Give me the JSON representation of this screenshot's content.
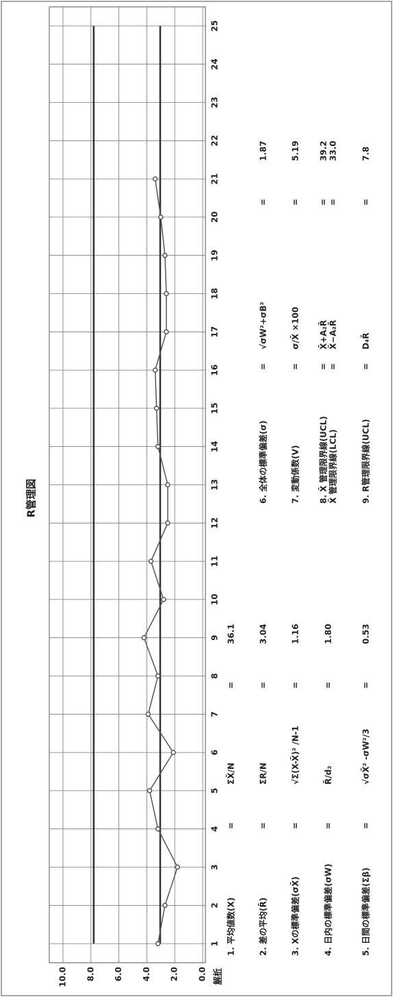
{
  "chart_data": {
    "type": "line",
    "title": "R管理図",
    "x": [
      1,
      2,
      3,
      4,
      5,
      6,
      7,
      8,
      9,
      10,
      11,
      12,
      13,
      14,
      15,
      16,
      17,
      18,
      19,
      20,
      21,
      22,
      23,
      24,
      25
    ],
    "values": [
      3.2,
      2.7,
      1.8,
      3.2,
      3.8,
      2.1,
      3.9,
      3.2,
      4.2,
      2.8,
      3.7,
      2.5,
      2.5,
      3.2,
      3.3,
      3.4,
      2.6,
      2.6,
      2.7,
      3.0,
      3.4,
      null,
      null,
      null,
      null
    ],
    "color": "#555555",
    "xlim": [
      0.5,
      25.5
    ],
    "xticks": [
      1,
      2,
      3,
      4,
      5,
      6,
      7,
      8,
      9,
      10,
      11,
      12,
      13,
      14,
      15,
      16,
      17,
      18,
      19,
      20,
      21,
      22,
      23,
      24,
      25
    ],
    "ylim": [
      0,
      10
    ],
    "yticks": [
      {
        "value": 0,
        "label": "0.0"
      },
      {
        "value": 2,
        "label": "2.0"
      },
      {
        "value": 4,
        "label": "4.0"
      },
      {
        "value": 6,
        "label": "6.0"
      },
      {
        "value": 8,
        "label": "8.0"
      },
      {
        "value": 10,
        "label": "10.0"
      }
    ],
    "grid": true
  },
  "analysis": {
    "title": "解析",
    "equals": "=",
    "items": [
      {
        "label": "1. 平均値数(X)",
        "formula": "ΣX̄/N",
        "result": "36.1"
      },
      {
        "label": "2. 差の平均(R̄)",
        "formula": "ΣR/N",
        "result": "3.04"
      },
      {
        "label": "3. Xの標準偏差(σX̄)",
        "formula": "√Σ(X-X̄)² /N-1",
        "result": "1.16"
      },
      {
        "label": "4. 日内の標準偏差(σW)",
        "formula": "R̄/d₂",
        "result": "1.80"
      },
      {
        "label": "5. 日間の標準偏差(Σβ)",
        "formula": "√σX̄² -σW²/3",
        "result": "0.53"
      },
      {
        "label": "6. 全体の標準偏差(σ)",
        "formula": "√σW²+σB²",
        "result": "1.87"
      },
      {
        "label": "7. 変動係数(V)",
        "formula": "σ/X̄ ×100",
        "result": "5.19"
      },
      {
        "label": [
          "8. X̄ 管理限界線(UCL)",
          "X̄ 管理限界線(LCL)"
        ],
        "formula": [
          "X̄+A₂R̄",
          "X̄−A₂R̄"
        ],
        "result": [
          "39.2",
          "33.0"
        ]
      },
      {
        "label": "9. R管理限界線(UCL)",
        "formula": "D₄R̄",
        "result": "7.8"
      }
    ]
  }
}
